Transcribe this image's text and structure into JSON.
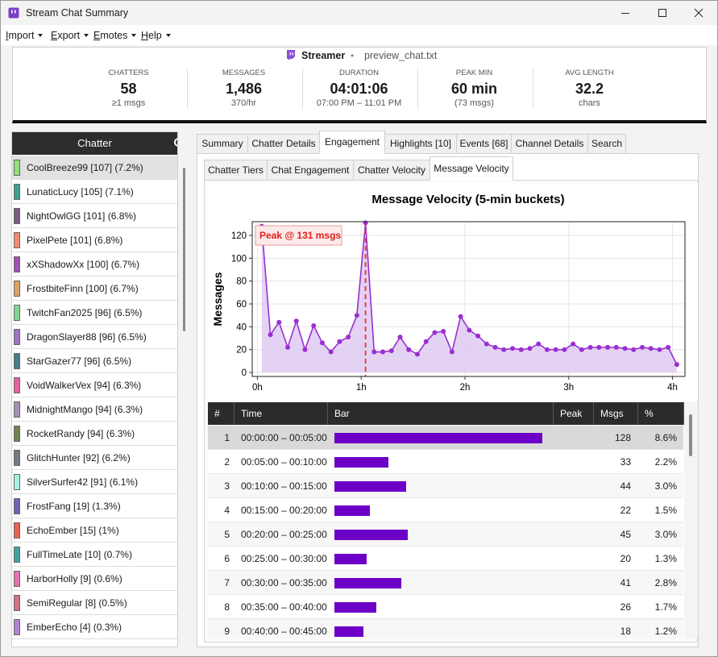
{
  "window": {
    "title": "Stream Chat Summary"
  },
  "menu": [
    "Import",
    "Export",
    "Emotes",
    "Help"
  ],
  "header": {
    "label": "Streamer",
    "separator": "•",
    "file": "preview_chat.txt"
  },
  "stats": [
    {
      "label": "CHATTERS",
      "value": "58",
      "sub": "≥1 msgs"
    },
    {
      "label": "MESSAGES",
      "value": "1,486",
      "sub": "370/hr"
    },
    {
      "label": "DURATION",
      "value": "04:01:06",
      "sub": "07:00 PM – 11:01 PM"
    },
    {
      "label": "PEAK MIN",
      "value": "60 min",
      "sub": "(73 msgs)"
    },
    {
      "label": "AVG LENGTH",
      "value": "32.2",
      "sub": "chars"
    }
  ],
  "sidebar": {
    "title": "Chatter",
    "selected": 0,
    "items": [
      {
        "text": "CoolBreeze99 [107] (7.2%)",
        "color": "#93e07a"
      },
      {
        "text": "LunaticLucy [105] (7.1%)",
        "color": "#3fa08e"
      },
      {
        "text": "NightOwlGG [101] (6.8%)",
        "color": "#7a5a82"
      },
      {
        "text": "PixelPete [101] (6.8%)",
        "color": "#f28a72"
      },
      {
        "text": "xXShadowXx [100] (6.7%)",
        "color": "#a050b4"
      },
      {
        "text": "FrostbiteFinn [100] (6.7%)",
        "color": "#d9a464"
      },
      {
        "text": "TwitchFan2025 [96] (6.5%)",
        "color": "#84d494"
      },
      {
        "text": "DragonSlayer88 [96] (6.5%)",
        "color": "#a074c2"
      },
      {
        "text": "StarGazer77 [96] (6.5%)",
        "color": "#4a7d8a"
      },
      {
        "text": "VoidWalkerVex [94] (6.3%)",
        "color": "#e462a4"
      },
      {
        "text": "MidnightMango [94] (6.3%)",
        "color": "#a492b4"
      },
      {
        "text": "RocketRandy [94] (6.3%)",
        "color": "#718252"
      },
      {
        "text": "GlitchHunter [92] (6.2%)",
        "color": "#737a82"
      },
      {
        "text": "SilverSurfer42 [91] (6.1%)",
        "color": "#a6f2e2"
      },
      {
        "text": "FrostFang [19] (1.3%)",
        "color": "#7262b2"
      },
      {
        "text": "EchoEmber [15] (1%)",
        "color": "#ea6252"
      },
      {
        "text": "FullTimeLate [10] (0.7%)",
        "color": "#42a2a2"
      },
      {
        "text": "HarborHolly [9] (0.6%)",
        "color": "#e672b2"
      },
      {
        "text": "SemiRegular [8] (0.5%)",
        "color": "#d27282"
      },
      {
        "text": "EmberEcho [4] (0.3%)",
        "color": "#b482d2"
      }
    ]
  },
  "tabs": {
    "active": 2,
    "items": [
      "Summary",
      "Chatter Details",
      "Engagement",
      "Highlights [10]",
      "Events [68]",
      "Channel Details",
      "Search"
    ]
  },
  "subtabs": {
    "active": 3,
    "items": [
      "Chatter Tiers",
      "Chat Engagement",
      "Chatter Velocity",
      "Message Velocity"
    ]
  },
  "chart_data": {
    "type": "line",
    "title": "Message Velocity (5-min buckets)",
    "y_label": "Messages",
    "annotation": "Peak @ 131 msgs",
    "series": [
      {
        "name": "Messages",
        "color": "#9a2fd2",
        "fill_color": "#dfcaf3",
        "x": [
          0.0417,
          0.125,
          0.2083,
          0.2917,
          0.375,
          0.4583,
          0.5417,
          0.625,
          0.7083,
          0.7917,
          0.875,
          0.9583,
          1.0417,
          1.125,
          1.2083,
          1.2917,
          1.375,
          1.4583,
          1.5417,
          1.625,
          1.7083,
          1.7917,
          1.875,
          1.9583,
          2.0417,
          2.125,
          2.2083,
          2.2917,
          2.375,
          2.4583,
          2.5417,
          2.625,
          2.7083,
          2.7917,
          2.875,
          2.9583,
          3.0417,
          3.125,
          3.2083,
          3.2917,
          3.375,
          3.4583,
          3.5417,
          3.625,
          3.7083,
          3.7917,
          3.875,
          3.9583,
          4.0417
        ],
        "values": [
          128,
          33,
          44,
          22,
          45,
          20,
          41,
          26,
          18,
          27,
          31,
          50,
          131,
          18,
          18,
          19,
          31,
          20,
          16,
          27,
          35,
          36,
          18,
          49,
          37,
          32,
          25,
          22,
          20,
          21,
          20,
          21,
          25,
          20,
          20,
          20,
          25,
          20,
          22,
          22,
          22,
          22,
          21,
          20,
          22,
          21,
          20,
          22,
          7
        ]
      }
    ],
    "xlim": [
      -0.05,
      4.12
    ],
    "xticks": [
      {
        "value": 0,
        "label": "0h"
      },
      {
        "value": 1,
        "label": "1h"
      },
      {
        "value": 2,
        "label": "2h"
      },
      {
        "value": 3,
        "label": "3h"
      },
      {
        "value": 4,
        "label": "4h"
      }
    ],
    "ylim": [
      -3.5,
      132
    ],
    "yticks": [
      0,
      20,
      40,
      60,
      80,
      100,
      120
    ],
    "grid": true,
    "peak_line_color": "#e0443c"
  },
  "table": {
    "columns": [
      "#",
      "Time",
      "Bar",
      "Peak",
      "Msgs",
      "%"
    ],
    "bar_color": "#6c00c6",
    "selected": 0,
    "rows": [
      {
        "n": 1,
        "time": "00:00:00 – 00:05:00",
        "msgs": 128,
        "pct": "8.6%"
      },
      {
        "n": 2,
        "time": "00:05:00 – 00:10:00",
        "msgs": 33,
        "pct": "2.2%"
      },
      {
        "n": 3,
        "time": "00:10:00 – 00:15:00",
        "msgs": 44,
        "pct": "3.0%"
      },
      {
        "n": 4,
        "time": "00:15:00 – 00:20:00",
        "msgs": 22,
        "pct": "1.5%"
      },
      {
        "n": 5,
        "time": "00:20:00 – 00:25:00",
        "msgs": 45,
        "pct": "3.0%"
      },
      {
        "n": 6,
        "time": "00:25:00 – 00:30:00",
        "msgs": 20,
        "pct": "1.3%"
      },
      {
        "n": 7,
        "time": "00:30:00 – 00:35:00",
        "msgs": 41,
        "pct": "2.8%"
      },
      {
        "n": 8,
        "time": "00:35:00 – 00:40:00",
        "msgs": 26,
        "pct": "1.7%"
      },
      {
        "n": 9,
        "time": "00:40:00 – 00:45:00",
        "msgs": 18,
        "pct": "1.2%"
      }
    ]
  }
}
